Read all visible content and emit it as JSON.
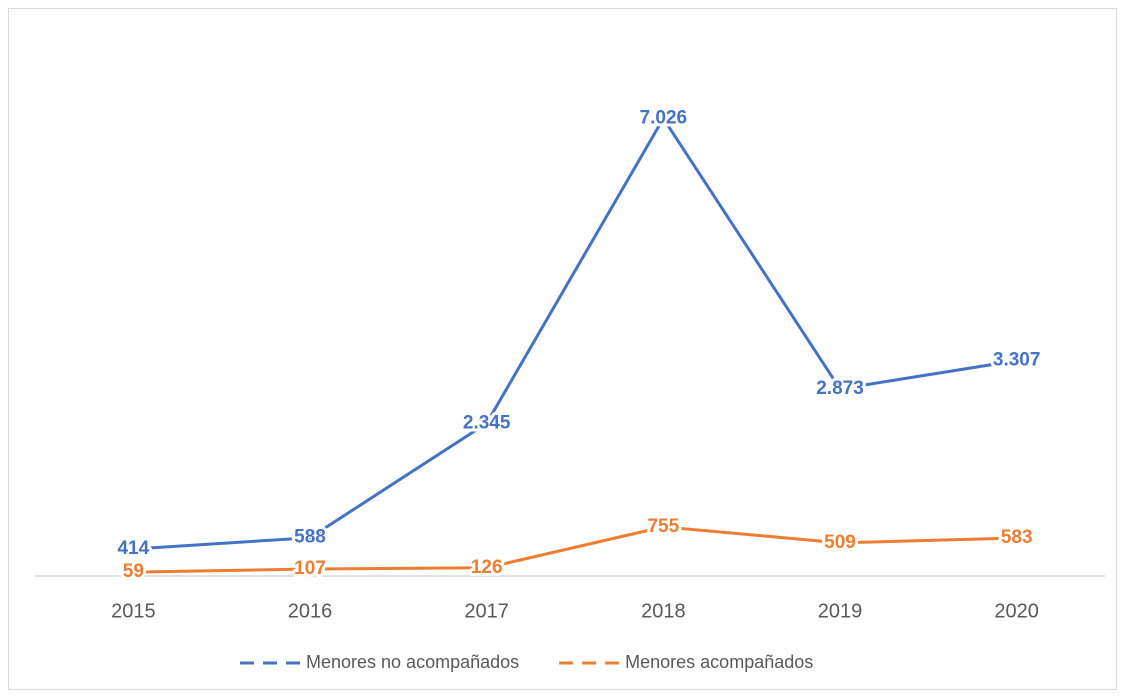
{
  "chart_data": {
    "type": "line",
    "categories": [
      "2015",
      "2016",
      "2017",
      "2018",
      "2019",
      "2020"
    ],
    "series": [
      {
        "name": "Menores no acompañados",
        "color": "#4472c4",
        "values": [
          414,
          588,
          2345,
          7026,
          2873,
          3307
        ],
        "value_labels": [
          "414",
          "588",
          "2.345",
          "7.026",
          "2.873",
          "3.307"
        ]
      },
      {
        "name": "Menores acompañados",
        "color": "#ed7d31",
        "values": [
          59,
          107,
          126,
          755,
          509,
          583
        ]
      }
    ],
    "ylim": [
      0,
      8000
    ],
    "legend": "bottom"
  }
}
